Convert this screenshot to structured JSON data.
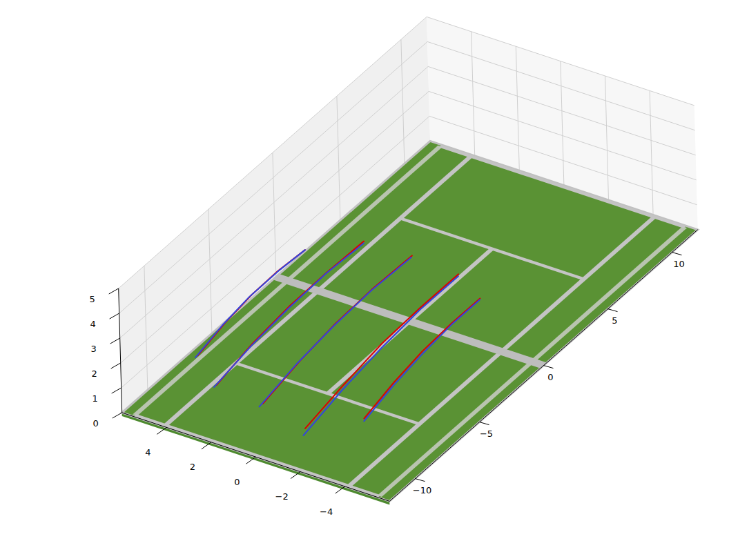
{
  "chart_data": {
    "type": "line3d",
    "xlim": [
      -6,
      6
    ],
    "ylim": [
      -12,
      12
    ],
    "zlim": [
      0,
      5
    ],
    "xticks": [
      {
        "value": -4,
        "label": "−4"
      },
      {
        "value": -2,
        "label": "−2"
      },
      0,
      2,
      4
    ],
    "yticks": [
      {
        "value": -10,
        "label": "−10"
      },
      {
        "value": -5,
        "label": "−5"
      },
      0,
      5,
      10
    ],
    "zticks": [
      0,
      1,
      2,
      3,
      4,
      5
    ],
    "grid": true,
    "series": [
      {
        "color": "#dd0000",
        "x": [
          4.7,
          4.45,
          4.2,
          3.95,
          3.7
        ],
        "y": [
          -8.3,
          -6.6,
          -4.9,
          -3.3,
          -1.6
        ],
        "z": [
          1.0,
          1.6,
          2.05,
          2.35,
          2.5
        ]
      },
      {
        "color": "#3344dd",
        "x": [
          4.75,
          4.5,
          4.25,
          3.95,
          3.7
        ],
        "y": [
          -8.4,
          -6.7,
          -5.0,
          -3.3,
          -1.6
        ],
        "z": [
          0.95,
          1.55,
          2.0,
          2.33,
          2.5
        ]
      },
      {
        "color": "#dd0000",
        "x": [
          3.0,
          2.8,
          2.55,
          2.3,
          2.1
        ],
        "y": [
          -9.8,
          -7.3,
          -4.8,
          -2.3,
          0.2
        ],
        "z": [
          1.0,
          1.6,
          2.05,
          2.35,
          2.5
        ]
      },
      {
        "color": "#3344dd",
        "x": [
          3.05,
          2.8,
          2.55,
          2.3,
          2.05
        ],
        "y": [
          -9.9,
          -7.4,
          -4.9,
          -2.4,
          0.1
        ],
        "z": [
          0.95,
          1.55,
          2.0,
          2.33,
          2.48
        ]
      },
      {
        "color": "#dd0000",
        "x": [
          0.8,
          0.6,
          0.4,
          0.2,
          0.0
        ],
        "y": [
          -10.0,
          -7.5,
          -5.0,
          -2.4,
          0.3
        ],
        "z": [
          1.0,
          1.6,
          2.05,
          2.35,
          2.5
        ]
      },
      {
        "color": "#3344dd",
        "x": [
          0.85,
          0.65,
          0.42,
          0.2,
          -0.02
        ],
        "y": [
          -10.2,
          -7.6,
          -5.1,
          -2.5,
          0.2
        ],
        "z": [
          0.95,
          1.55,
          2.0,
          2.33,
          2.48
        ]
      },
      {
        "color": "#dd0000",
        "x": [
          -1.5,
          -1.7,
          -1.85,
          -2.05,
          -2.2
        ],
        "y": [
          -10.7,
          -8.0,
          -5.3,
          -2.6,
          0.1
        ],
        "z": [
          1.0,
          1.6,
          2.05,
          2.35,
          2.5
        ]
      },
      {
        "color": "#3344dd",
        "x": [
          -1.65,
          -1.8,
          -1.95,
          -2.1,
          -2.25
        ],
        "y": [
          -11.1,
          -8.3,
          -5.5,
          -2.7,
          0.0
        ],
        "z": [
          0.95,
          1.55,
          2.0,
          2.33,
          2.48
        ]
      },
      {
        "color": "#dd0000",
        "x": [
          -3.05,
          -3.25,
          -3.45,
          -3.65,
          -3.8
        ],
        "y": [
          -8.8,
          -6.8,
          -4.9,
          -2.95,
          -1.0
        ],
        "z": [
          1.0,
          1.6,
          2.05,
          2.35,
          2.5
        ]
      },
      {
        "color": "#3344dd",
        "x": [
          -3.1,
          -3.3,
          -3.5,
          -3.68,
          -3.82
        ],
        "y": [
          -8.9,
          -6.9,
          -5.0,
          -3.0,
          -1.05
        ],
        "z": [
          0.95,
          1.55,
          2.0,
          2.33,
          2.48
        ]
      }
    ]
  }
}
